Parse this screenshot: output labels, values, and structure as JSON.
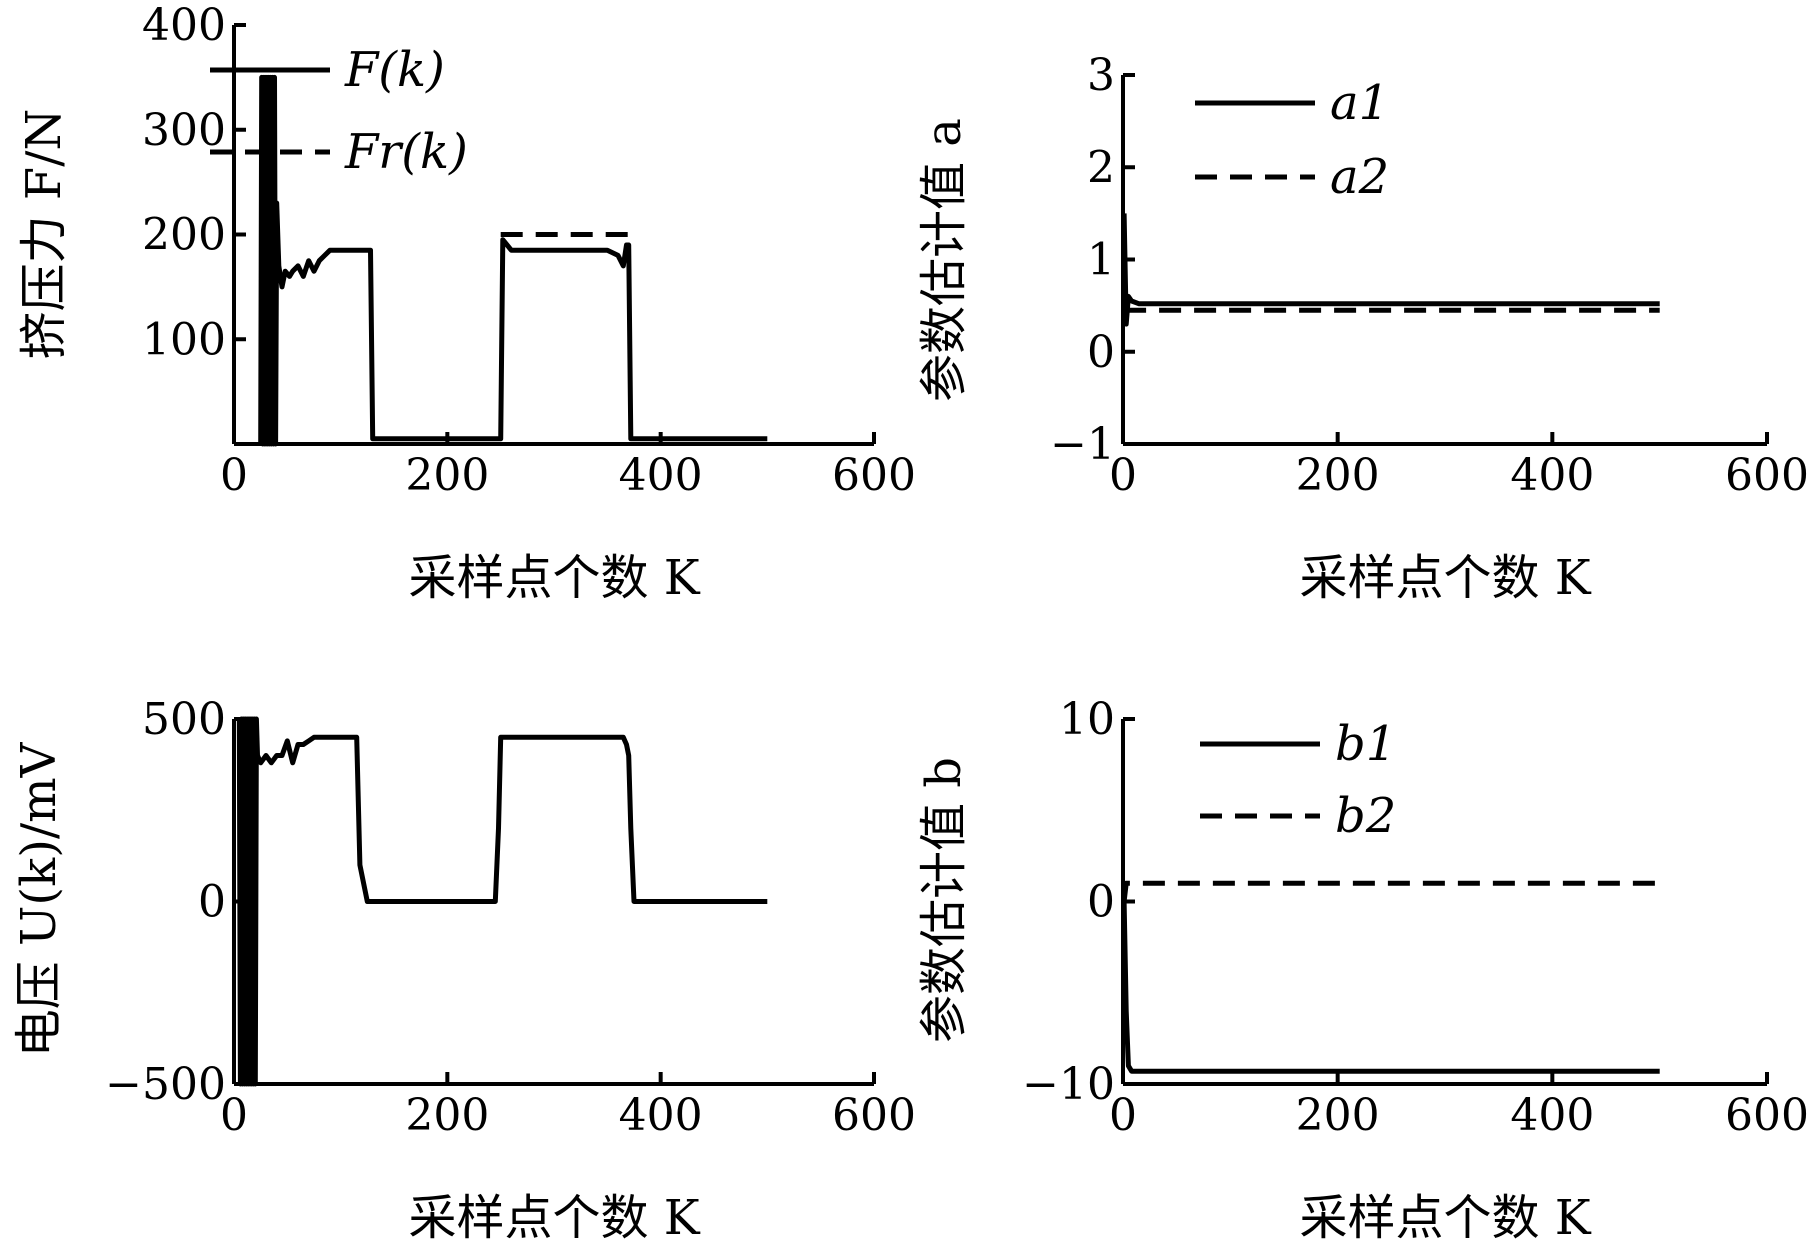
{
  "chart_data": [
    {
      "type": "line",
      "xlabel": "采样点个数 K",
      "ylabel": "挤压力 F/N",
      "xlim": [
        0,
        600
      ],
      "ylim": [
        0,
        400
      ],
      "xticks": [
        "0",
        "200",
        "400",
        "600"
      ],
      "yticks": [
        "100",
        "200",
        "300",
        "400"
      ],
      "legend": "top-right",
      "series": [
        {
          "name": "F(k)",
          "style": "solid",
          "x": [
            25,
            26,
            27,
            28,
            29,
            30,
            31,
            32,
            33,
            34,
            35,
            36,
            37,
            38,
            39,
            40,
            42,
            45,
            48,
            52,
            55,
            60,
            65,
            70,
            75,
            80,
            85,
            90,
            95,
            120,
            128,
            130,
            150,
            200,
            250,
            252,
            260,
            300,
            350,
            360,
            365,
            368,
            370,
            372,
            380,
            400,
            500
          ],
          "y": [
            0,
            350,
            0,
            350,
            0,
            350,
            0,
            350,
            0,
            350,
            0,
            350,
            0,
            350,
            0,
            230,
            170,
            150,
            165,
            160,
            165,
            170,
            160,
            175,
            165,
            175,
            180,
            185,
            185,
            185,
            185,
            5,
            5,
            5,
            5,
            195,
            185,
            185,
            185,
            180,
            170,
            190,
            190,
            5,
            5,
            5,
            5
          ]
        },
        {
          "name": "Fr(k)",
          "style": "dashed",
          "x": [
            30,
            130,
            250,
            370
          ],
          "y": [
            200,
            null,
            200,
            200
          ]
        }
      ]
    },
    {
      "type": "line",
      "xlabel": "采样点个数 K",
      "ylabel": "参数估计值 a",
      "xlim": [
        0,
        600
      ],
      "ylim": [
        -1,
        3
      ],
      "xticks": [
        "0",
        "200",
        "400",
        "600"
      ],
      "yticks": [
        "−1",
        "0",
        "1",
        "2",
        "3"
      ],
      "legend": "top-right",
      "series": [
        {
          "name": "a1",
          "style": "solid",
          "x": [
            1,
            3,
            5,
            8,
            15,
            50,
            500
          ],
          "y": [
            1.5,
            0.3,
            0.6,
            0.55,
            0.52,
            0.52,
            0.52
          ]
        },
        {
          "name": "a2",
          "style": "dashed",
          "x": [
            1,
            500
          ],
          "y": [
            0.45,
            0.45
          ]
        }
      ]
    },
    {
      "type": "line",
      "xlabel": "采样点个数 K",
      "ylabel": "电压 U(k)/mV",
      "xlim": [
        0,
        600
      ],
      "ylim": [
        -500,
        500
      ],
      "xticks": [
        "0",
        "200",
        "400",
        "600"
      ],
      "yticks": [
        "−500",
        "0",
        "500"
      ],
      "series": [
        {
          "name": "U(k)",
          "style": "solid",
          "x": [
            5,
            6,
            7,
            8,
            9,
            10,
            11,
            12,
            13,
            14,
            15,
            16,
            17,
            18,
            19,
            20,
            21,
            22,
            25,
            30,
            35,
            40,
            45,
            50,
            55,
            60,
            65,
            70,
            75,
            115,
            118,
            125,
            245,
            248,
            250,
            300,
            365,
            368,
            370,
            372,
            375,
            500
          ],
          "y": [
            500,
            -500,
            500,
            -500,
            500,
            -500,
            500,
            -500,
            500,
            -500,
            500,
            -500,
            500,
            -500,
            500,
            -500,
            500,
            400,
            380,
            400,
            380,
            400,
            400,
            440,
            380,
            430,
            430,
            440,
            450,
            450,
            100,
            0,
            0,
            200,
            450,
            450,
            450,
            430,
            400,
            200,
            0,
            0
          ]
        }
      ]
    },
    {
      "type": "line",
      "xlabel": "采样点个数 K",
      "ylabel": "参数估计值 b",
      "xlim": [
        0,
        600
      ],
      "ylim": [
        -10,
        10
      ],
      "xticks": [
        "0",
        "200",
        "400",
        "600"
      ],
      "yticks": [
        "−10",
        "0",
        "10"
      ],
      "legend": "top-right",
      "series": [
        {
          "name": "b1",
          "style": "solid",
          "x": [
            1,
            3,
            5,
            8,
            20,
            500
          ],
          "y": [
            0,
            -6,
            -9,
            -9.3,
            -9.3,
            -9.3
          ]
        },
        {
          "name": "b2",
          "style": "dashed",
          "x": [
            1,
            3,
            6,
            15,
            500
          ],
          "y": [
            0,
            1,
            1,
            1,
            1
          ]
        }
      ]
    }
  ]
}
